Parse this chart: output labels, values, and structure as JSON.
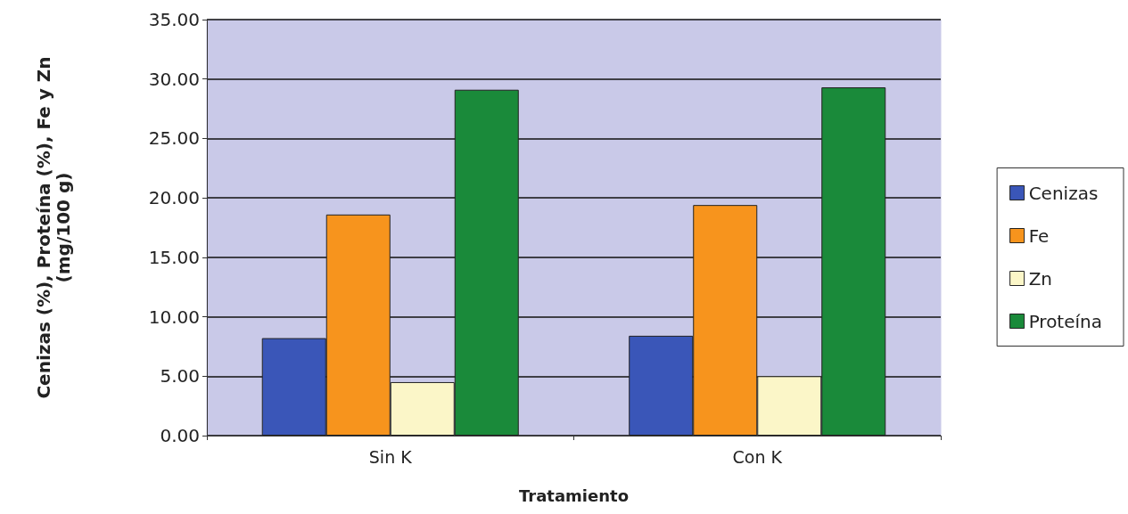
{
  "chart_data": {
    "type": "bar",
    "xlabel": "Tratamiento",
    "ylabel": "Cenizas (%), Proteína (%), Fe y Zn\n(mg/100 g)",
    "categories": [
      "Sin K",
      "Con K"
    ],
    "series": [
      {
        "name": "Cenizas",
        "color": "#3a56b8",
        "values": [
          8.2,
          8.4
        ]
      },
      {
        "name": "Fe",
        "color": "#f7941d",
        "values": [
          18.6,
          19.4
        ]
      },
      {
        "name": "Zn",
        "color": "#fbf6c8",
        "values": [
          4.5,
          5.0
        ]
      },
      {
        "name": "Proteína",
        "color": "#1a8a3a",
        "values": [
          29.1,
          29.3
        ]
      }
    ],
    "ylim": [
      0,
      35
    ],
    "yticks": [
      {
        "value": 0,
        "label": "0.00"
      },
      {
        "value": 5,
        "label": "5.00"
      },
      {
        "value": 10,
        "label": "10.00"
      },
      {
        "value": 15,
        "label": "15.00"
      },
      {
        "value": 20,
        "label": "20.00"
      },
      {
        "value": 25,
        "label": "25.00"
      },
      {
        "value": 30,
        "label": "30.00"
      },
      {
        "value": 35,
        "label": "35.00"
      }
    ],
    "grid": "y",
    "legend": "right"
  }
}
